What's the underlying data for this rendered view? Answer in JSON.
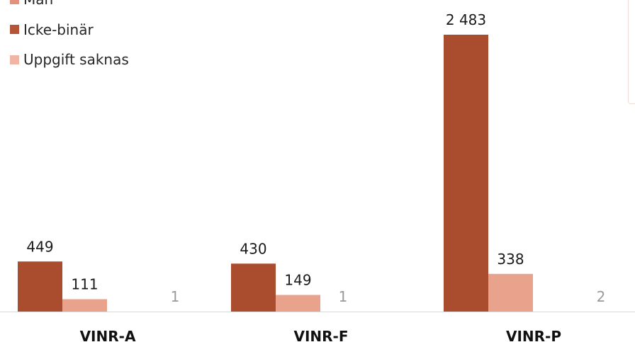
{
  "chart_data": {
    "type": "bar",
    "categories": [
      "VINR-A",
      "VINR-F",
      "VINR-P"
    ],
    "series": [
      {
        "name": "Icke-binär",
        "values": [
          449,
          430,
          2483
        ],
        "labels": [
          "449",
          "430",
          "2 483"
        ],
        "color": "#a94d2e"
      },
      {
        "name": "Uppgift saknas",
        "values": [
          111,
          149,
          338
        ],
        "labels": [
          "111",
          "149",
          "338"
        ],
        "color": "#e9a28c"
      },
      {
        "name": "",
        "values": [
          1,
          1,
          2
        ],
        "labels": [
          "1",
          "1",
          "2"
        ],
        "color": "#d9d9d9"
      }
    ],
    "legend": [
      {
        "label": "Man",
        "color": "#e2927a"
      },
      {
        "label": "Icke-binär",
        "color": "#b4553a"
      },
      {
        "label": "Uppgift saknas",
        "color": "#f0b6a5"
      }
    ],
    "ylim": [
      0,
      2900
    ],
    "grid": false,
    "legend_position": "top-left",
    "colors": {
      "axis": "#d9d9d9",
      "value_text": "#1a1a1a",
      "faded_value_text": "#9a9a9a"
    }
  }
}
